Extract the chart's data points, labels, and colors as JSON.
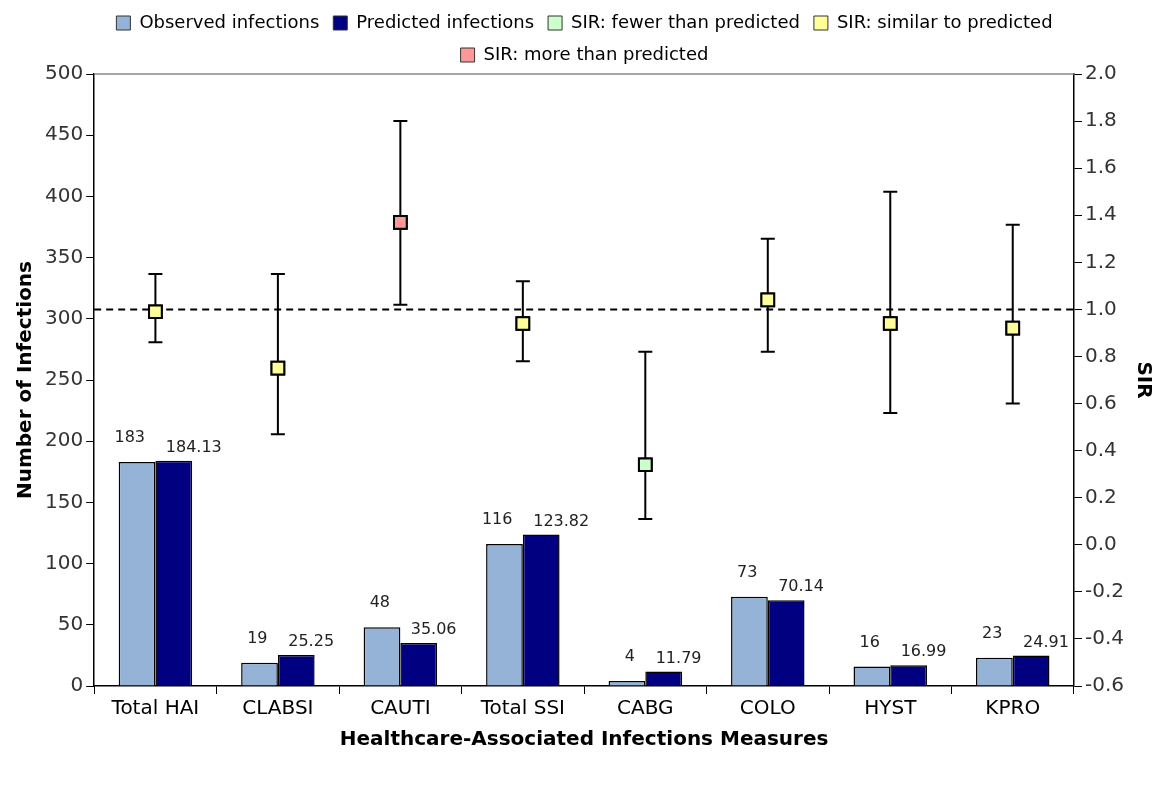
{
  "chart_data": {
    "type": "bar",
    "xlabel": "Healthcare-Associated Infections Measures",
    "ylabel": "Number of Infections",
    "y2label": "SIR",
    "categories": [
      "Total HAI",
      "CLABSI",
      "CAUTI",
      "Total SSI",
      "CABG",
      "COLO",
      "HYST",
      "KPRO"
    ],
    "series": [
      {
        "name": "Observed infections",
        "color": "#95b3d7",
        "values": [
          183,
          19,
          48,
          116,
          4,
          73,
          16,
          23
        ],
        "value_labels": [
          "183",
          "19",
          "48",
          "116",
          "4",
          "73",
          "16",
          "23"
        ]
      },
      {
        "name": "Predicted infections",
        "color": "#000080",
        "values": [
          184.13,
          25.25,
          35.06,
          123.82,
          11.79,
          70.14,
          16.99,
          24.91
        ],
        "value_labels": [
          "184.13",
          "25.25",
          "35.06",
          "123.82",
          "11.79",
          "70.14",
          "16.99",
          "24.91"
        ]
      },
      {
        "name": "SIR: fewer than predicted",
        "type": "scatter",
        "axis": "y2",
        "color": "#ccffcc",
        "values": [
          null,
          null,
          null,
          null,
          0.34,
          null,
          null,
          null
        ],
        "errors": [
          null,
          null,
          null,
          null,
          [
            0.11,
            0.82
          ],
          null,
          null,
          null
        ]
      },
      {
        "name": "SIR: similar to predicted",
        "type": "scatter",
        "axis": "y2",
        "color": "#ffff99",
        "values": [
          0.99,
          0.75,
          null,
          0.94,
          null,
          1.04,
          0.94,
          0.92
        ],
        "errors": [
          [
            0.86,
            1.15
          ],
          [
            0.47,
            1.15
          ],
          null,
          [
            0.78,
            1.12
          ],
          null,
          [
            0.82,
            1.3
          ],
          [
            0.56,
            1.5
          ],
          [
            0.6,
            1.36
          ]
        ]
      },
      {
        "name": "SIR: more than predicted",
        "type": "scatter",
        "axis": "y2",
        "color": "#ff9999",
        "values": [
          null,
          null,
          1.37,
          null,
          null,
          null,
          null,
          null
        ],
        "errors": [
          null,
          null,
          [
            1.02,
            1.8
          ],
          null,
          null,
          null,
          null,
          null
        ]
      }
    ],
    "ylim": [
      0,
      500
    ],
    "yticks": [
      0,
      50,
      100,
      150,
      200,
      250,
      300,
      350,
      400,
      450,
      500
    ],
    "y2lim": [
      -0.6,
      2.0
    ],
    "y2ticks": [
      -0.6,
      -0.4,
      -0.2,
      {
        "value": 0,
        "label": "0.0"
      },
      0.2,
      0.4,
      0.6,
      0.8,
      {
        "value": 1,
        "label": "1.0"
      },
      1.2,
      1.4,
      1.6,
      1.8,
      {
        "value": 2,
        "label": "2.0"
      }
    ],
    "ref_lines": [
      {
        "axis": "y2",
        "value": 1,
        "line_style": "dashed",
        "color": "#000000"
      }
    ],
    "marker": "square",
    "grid": false,
    "legend": "top"
  }
}
